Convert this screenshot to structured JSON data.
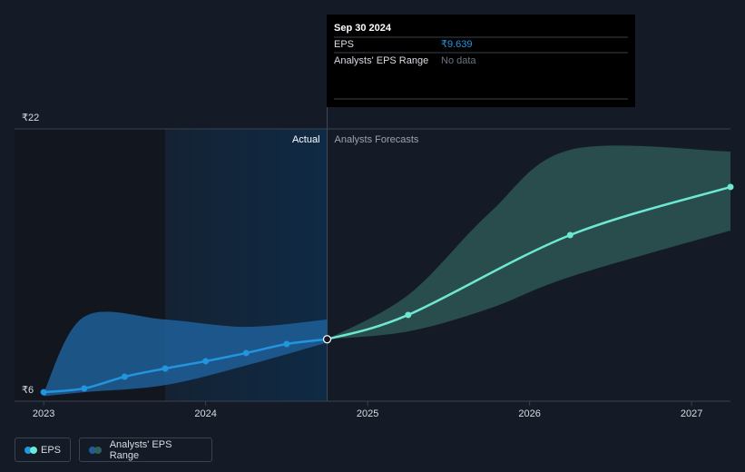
{
  "chart_data": {
    "type": "line",
    "xlim": [
      2022.82,
      2027.24
    ],
    "xticks": [
      2023,
      2024,
      2025,
      2026,
      2027
    ],
    "ylim": [
      6,
      22
    ],
    "yticks": [
      {
        "value": 22,
        "label": "₹22"
      },
      {
        "value": 6,
        "label": "₹6"
      }
    ],
    "annotations": {
      "actual": "Actual",
      "forecast": "Analysts Forecasts"
    },
    "series": [
      {
        "name": "EPS",
        "color": "#2394df",
        "x": [
          2023,
          2023.25,
          2023.5,
          2023.75,
          2024,
          2024.25,
          2024.5,
          2024.75
        ],
        "values": [
          6.53,
          6.75,
          7.44,
          7.92,
          8.35,
          8.83,
          9.36,
          9.639
        ],
        "forecast_color": "#6ee7d3",
        "forecast_x": [
          2024.75,
          2025.25,
          2026.25,
          2027.24
        ],
        "forecast_values": [
          9.639,
          11.07,
          15.76,
          18.59
        ]
      },
      {
        "name": "Analysts' EPS Range",
        "color": "#1f5f99",
        "x": [
          2023,
          2023.25,
          2023.75,
          2024.25,
          2024.75
        ],
        "high": [
          6.5,
          10.96,
          10.8,
          10.37,
          10.8
        ],
        "low": [
          6.3,
          6.53,
          6.95,
          8.1,
          9.45
        ],
        "forecast_color": "#2f5f5a",
        "forecast_x": [
          2024.75,
          2025.25,
          2025.75,
          2026.25,
          2027.24
        ],
        "forecast_high": [
          9.639,
          12.24,
          17.04,
          20.77,
          20.67
        ],
        "forecast_low": [
          9.639,
          10.1,
          11.44,
          13.31,
          16.03
        ]
      }
    ],
    "tooltip": {
      "date": "Sep 30 2024",
      "rows": [
        {
          "label": "EPS",
          "value": "₹9.639"
        },
        {
          "label": "Analysts' EPS Range",
          "value": "No data"
        }
      ]
    }
  }
}
